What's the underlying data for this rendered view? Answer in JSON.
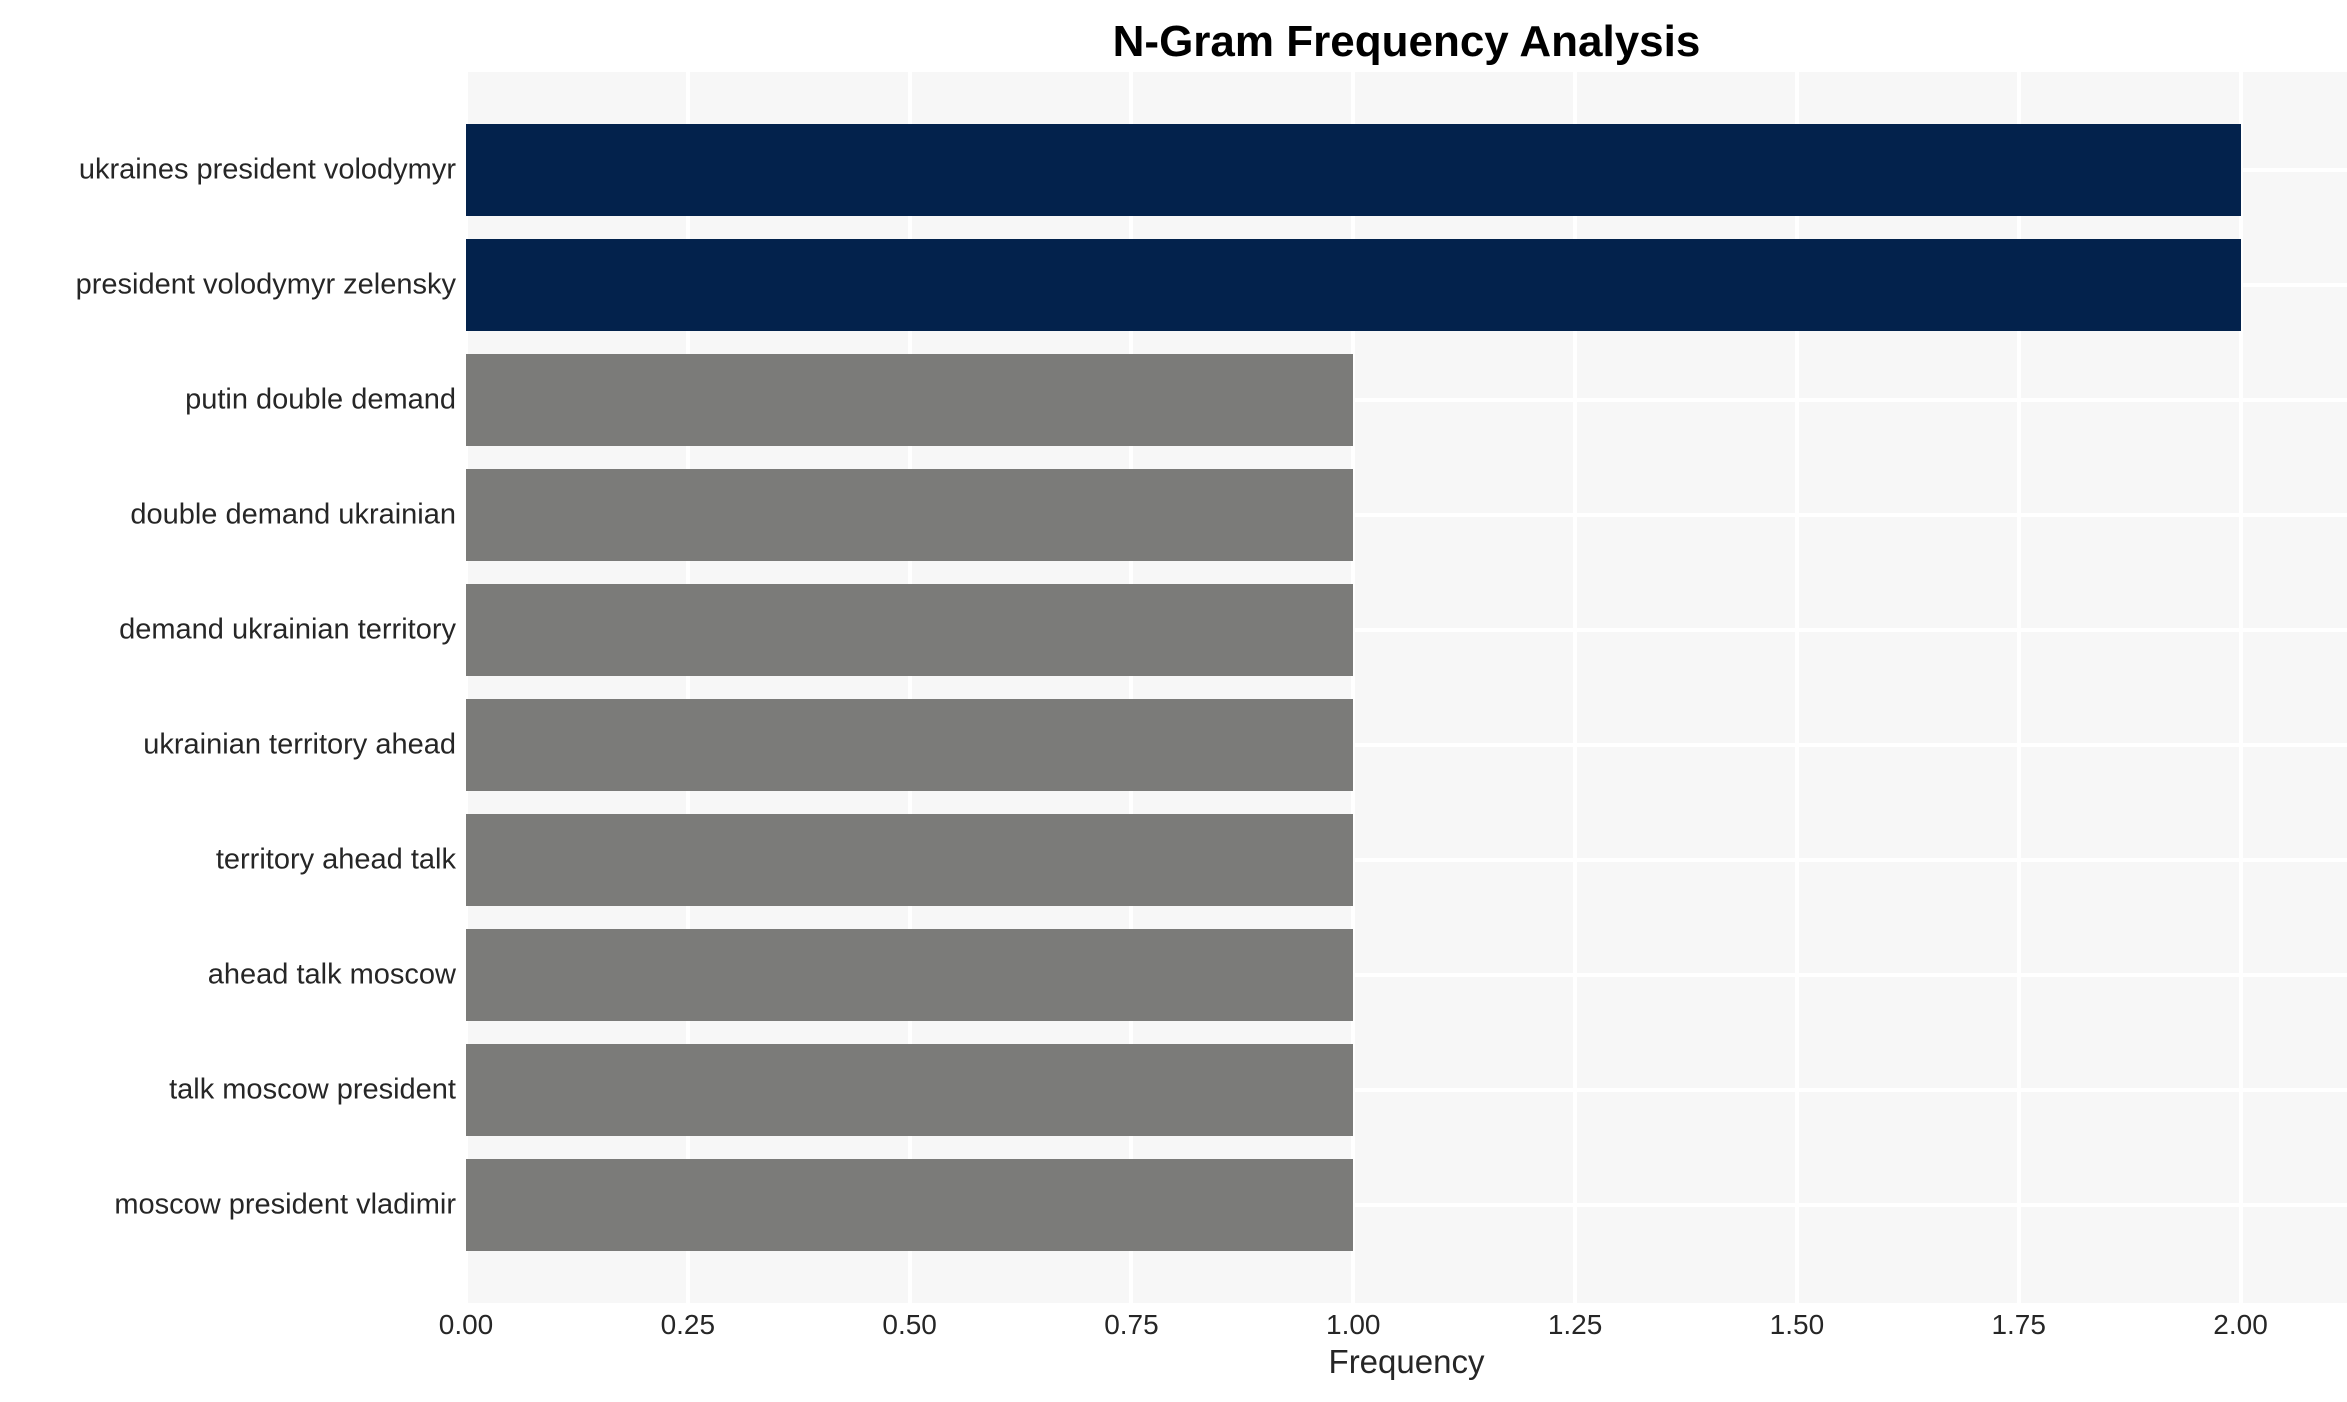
{
  "chart_data": {
    "type": "bar",
    "orientation": "horizontal",
    "title": "N-Gram Frequency Analysis",
    "xlabel": "Frequency",
    "ylabel": "",
    "categories": [
      "ukraines president volodymyr",
      "president volodymyr zelensky",
      "putin double demand",
      "double demand ukrainian",
      "demand ukrainian territory",
      "ukrainian territory ahead",
      "territory ahead talk",
      "ahead talk moscow",
      "talk moscow president",
      "moscow president vladimir"
    ],
    "values": [
      2,
      2,
      1,
      1,
      1,
      1,
      1,
      1,
      1,
      1
    ],
    "bar_colors": [
      "#03224c",
      "#03224c",
      "#7b7b79",
      "#7b7b79",
      "#7b7b79",
      "#7b7b79",
      "#7b7b79",
      "#7b7b79",
      "#7b7b79",
      "#7b7b79"
    ],
    "x_tick_labels": [
      "0.00",
      "0.25",
      "0.50",
      "0.75",
      "1.00",
      "1.25",
      "1.50",
      "1.75",
      "2.00"
    ],
    "x_tick_values": [
      0,
      0.25,
      0.5,
      0.75,
      1.0,
      1.25,
      1.5,
      1.75,
      2.0
    ],
    "xlim": [
      0,
      2.12
    ],
    "grid": true,
    "legend": false,
    "plot_bg_color": "#f7f7f7",
    "grid_color": "#ffffff",
    "tick_text_color": "#262626"
  }
}
